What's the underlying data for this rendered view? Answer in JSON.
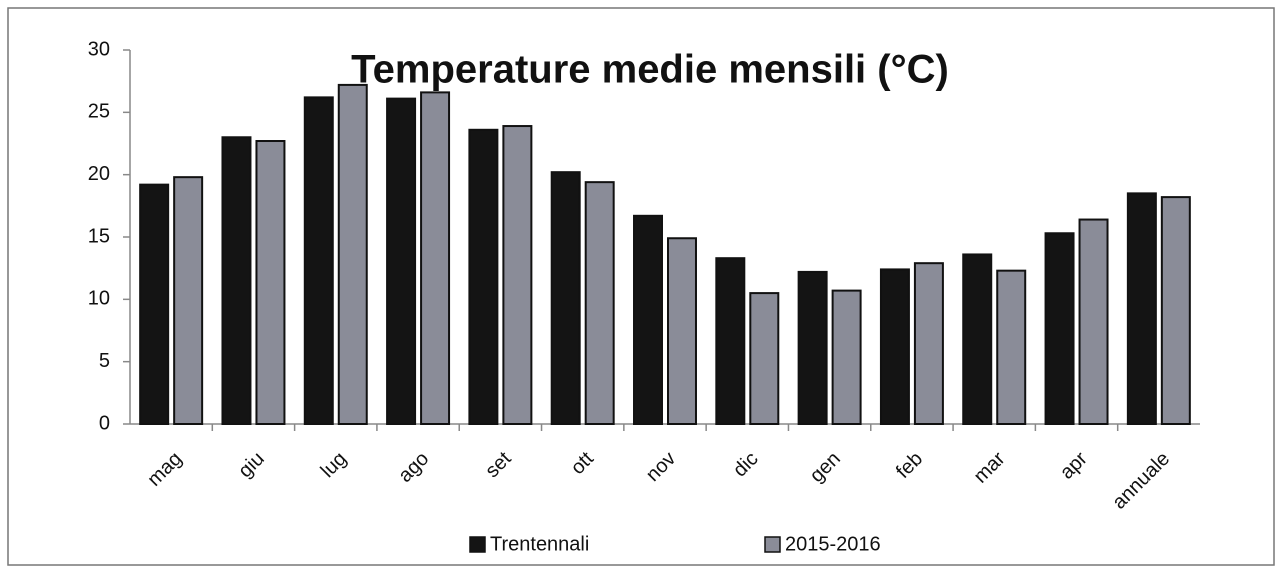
{
  "chart_data": {
    "type": "bar",
    "title": "Temperature medie mensili (°C)",
    "categories": [
      "mag",
      "giu",
      "lug",
      "ago",
      "set",
      "ott",
      "nov",
      "dic",
      "gen",
      "feb",
      "mar",
      "apr",
      "annuale"
    ],
    "series": [
      {
        "name": "Trentennali",
        "color": "#141414",
        "values": [
          19.2,
          23.0,
          26.2,
          26.1,
          23.6,
          20.2,
          16.7,
          13.3,
          12.2,
          12.4,
          13.6,
          15.3,
          18.5
        ]
      },
      {
        "name": "2015-2016",
        "color": "#8a8c98",
        "values": [
          19.8,
          22.7,
          27.2,
          26.6,
          23.9,
          19.4,
          14.9,
          10.5,
          10.7,
          12.9,
          12.3,
          16.4,
          18.2
        ]
      }
    ],
    "ylim": [
      0,
      30
    ],
    "yticks": [
      0,
      5,
      10,
      15,
      20,
      25,
      30
    ],
    "grid": false,
    "legend": "bottom"
  }
}
